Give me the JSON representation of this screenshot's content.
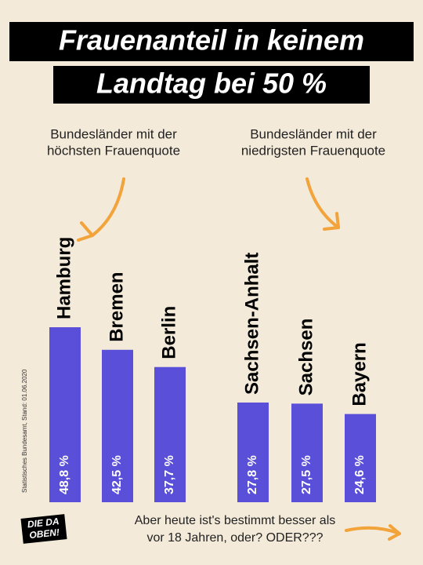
{
  "chart_data": {
    "type": "bar",
    "title": [
      "Frauenanteil in keinem",
      "Landtag bei 50 %"
    ],
    "annotations": [
      [
        "Bundesländer mit der",
        "höchsten Frauenquote"
      ],
      [
        "Bundesländer mit der",
        "niedrigsten Frauenquote"
      ]
    ],
    "categories": [
      "Hamburg",
      "Bremen",
      "Berlin",
      "Sachsen-Anhalt",
      "Sachsen",
      "Bayern"
    ],
    "values": [
      48.8,
      42.5,
      37.7,
      27.8,
      27.5,
      24.6
    ],
    "value_labels": [
      "48,8 %",
      "42,5 %",
      "37,7 %",
      "27,8 %",
      "27,5 %",
      "24,6 %"
    ],
    "color": "#5a4fd8",
    "source": "Statistisches Bundesamt, Stand: 01.06.2020",
    "logo": [
      "DIE DA",
      "OBEN!"
    ],
    "footer": [
      "Aber heute ist's bestimmt besser als",
      "vor 18 Jahren, oder? ODER???"
    ]
  }
}
